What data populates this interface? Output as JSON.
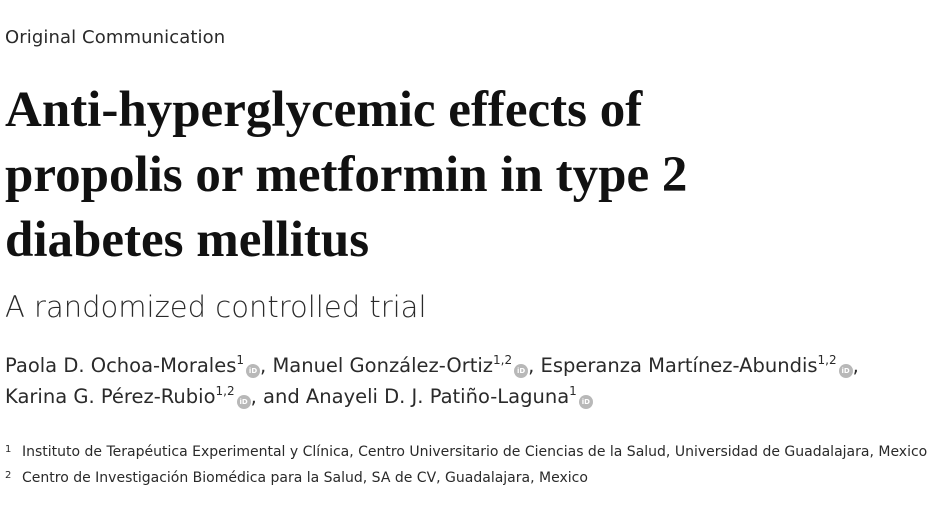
{
  "section_label": "Original Communication",
  "title_lines": [
    "Anti-hyperglycemic effects of",
    "propolis or metformin in type 2",
    "diabetes mellitus"
  ],
  "subtitle": "A randomized controlled trial",
  "authors": [
    {
      "name": "Paola D. Ochoa-Morales",
      "aff": "1",
      "sep": ", "
    },
    {
      "name": "Manuel González-Ortiz",
      "aff": "1,2",
      "sep": ", "
    },
    {
      "name": "Esperanza Martínez-Abundis",
      "aff": "1,2",
      "sep": ","
    },
    {
      "name": "Karina G. Pérez-Rubio",
      "aff": "1,2",
      "sep": ", and "
    },
    {
      "name": "Anayeli D. J. Patiño-Laguna",
      "aff": "1",
      "sep": ""
    }
  ],
  "orcid_label": "iD",
  "affiliations": [
    {
      "num": "1",
      "text": "Instituto de Terapéutica Experimental y Clínica, Centro Universitario de Ciencias de la Salud, Universidad de Guadalajara, Mexico"
    },
    {
      "num": "2",
      "text": "Centro de Investigación Biomédica para la Salud, SA de CV, Guadalajara, Mexico"
    }
  ],
  "colors": {
    "text": "#1a1a1a",
    "orcid_badge": "#b8b8b8"
  }
}
